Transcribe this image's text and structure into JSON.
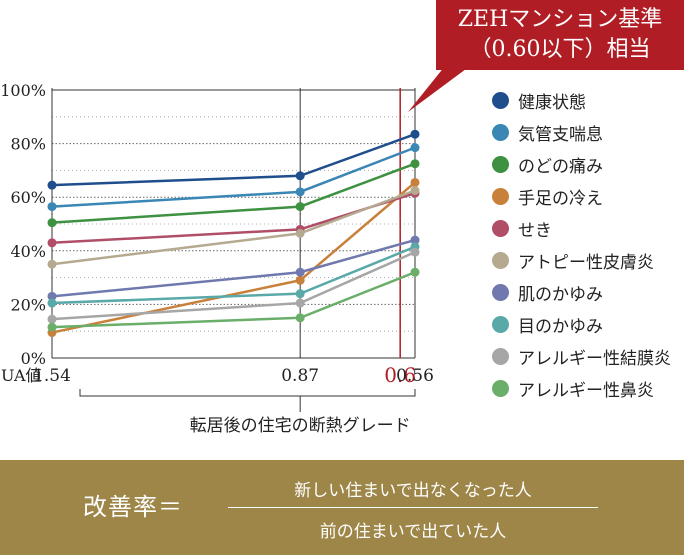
{
  "callout": {
    "line1": "ZEHマンション基準",
    "line2": "（0.60以下）相当"
  },
  "chart_data": {
    "type": "line",
    "x": [
      1.54,
      0.87,
      0.56
    ],
    "x_tick_labels": [
      "1.54",
      "0.87",
      "0.56"
    ],
    "x_prefix_label": "UA値",
    "xlabel": "転居後の住宅の断熱グレード",
    "ylabel": "",
    "ylim": [
      0,
      100
    ],
    "y_ticks": [
      0,
      20,
      40,
      60,
      80,
      100
    ],
    "y_tick_labels": [
      "0%",
      "20%",
      "40%",
      "60%",
      "80%",
      "100%"
    ],
    "reference_line": {
      "x": 0.6,
      "label": "0.6",
      "color": "#b01d24"
    },
    "grid": true,
    "legend_position": "right",
    "series": [
      {
        "name": "健康状態",
        "color": "#1f4e8c",
        "values": [
          64.5,
          68,
          83.5
        ]
      },
      {
        "name": "気管支喘息",
        "color": "#3a86b5",
        "values": [
          56.5,
          62,
          78.5
        ]
      },
      {
        "name": "のどの痛み",
        "color": "#3d9140",
        "values": [
          50.5,
          56.5,
          72.5
        ]
      },
      {
        "name": "手足の冷え",
        "color": "#c8813a",
        "values": [
          9.5,
          29,
          65.5
        ]
      },
      {
        "name": "せき",
        "color": "#b04e68",
        "values": [
          43,
          48,
          61.5
        ]
      },
      {
        "name": "アトピー性皮膚炎",
        "color": "#b5aa90",
        "values": [
          35,
          46.5,
          62.5
        ]
      },
      {
        "name": "肌のかゆみ",
        "color": "#6f79ae",
        "values": [
          23,
          32,
          44
        ]
      },
      {
        "name": "目のかゆみ",
        "color": "#5aa9a9",
        "values": [
          20.5,
          24,
          41.5
        ]
      },
      {
        "name": "アレルギー性結膜炎",
        "color": "#a6a6a6",
        "values": [
          14.5,
          20.5,
          39.5
        ]
      },
      {
        "name": "アレルギー性鼻炎",
        "color": "#6aae6a",
        "values": [
          11.5,
          15,
          32
        ]
      }
    ]
  },
  "footer": {
    "label": "改善率＝",
    "numerator": "新しい住まいで出なくなった人",
    "denominator": "前の住まいで出ていた人"
  }
}
